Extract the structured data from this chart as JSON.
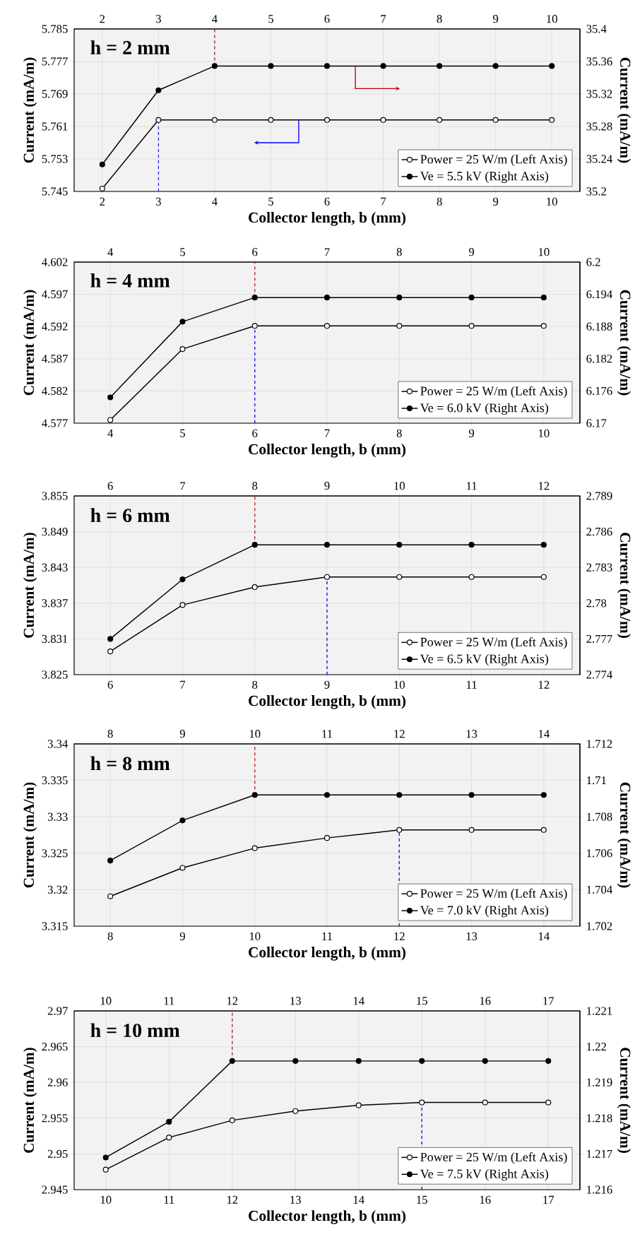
{
  "chart_data": [
    {
      "type": "line",
      "annotations": [
        "h = 2 mm"
      ],
      "xlabel": "Collector length, b (mm)",
      "ylabel": "Current (mA/m)",
      "y2label": "Current (mA/m)",
      "x": [
        2,
        3,
        4,
        5,
        6,
        7,
        8,
        9,
        10
      ],
      "series": [
        {
          "name": "Power = 25 W/m (Left Axis)",
          "color": "#000000",
          "values": [
            5.7457,
            5.7626,
            5.7626,
            5.7626,
            5.7626,
            5.7626,
            5.7626,
            5.7626,
            5.7626
          ]
        },
        {
          "name": "Ve = 5.5 kV (Right Axis)",
          "color": "#000000",
          "axis": "y2",
          "values": [
            35.2333,
            35.3246,
            35.3544,
            35.3544,
            35.3544,
            35.3544,
            35.3544,
            35.3544,
            35.3544
          ]
        }
      ],
      "xlim": [
        1.5,
        10.5
      ],
      "xticks": [
        2,
        3,
        4,
        5,
        6,
        7,
        8,
        9,
        10
      ],
      "x2lim": [
        1.5,
        10.5
      ],
      "x2ticks": [
        2,
        3,
        4,
        5,
        6,
        7,
        8,
        9,
        10
      ],
      "ylim": [
        5.745,
        5.785
      ],
      "yticks": [
        5.745,
        5.753,
        5.761,
        5.769,
        5.777,
        5.785
      ],
      "y2lim": [
        35.2,
        35.4
      ],
      "y2ticks": [
        35.2,
        35.24,
        35.28,
        35.32,
        35.36,
        35.4
      ],
      "ref_lines": [
        {
          "axis": "x",
          "value": 3,
          "color": "#1f1fff",
          "line_style": "dashed"
        },
        {
          "axis": "x",
          "value": 4,
          "color": "#c0282d",
          "line_style": "dashed"
        }
      ],
      "grid": true,
      "legend": "bottom right",
      "marker": "circle"
    },
    {
      "type": "line",
      "annotations": [
        "h = 4 mm"
      ],
      "xlabel": "Collector length, b (mm)",
      "ylabel": "Current (mA/m)",
      "y2label": "Current (mA/m)",
      "x": [
        4,
        5,
        6,
        7,
        8,
        9,
        10
      ],
      "series": [
        {
          "name": "Power = 25 W/m (Left Axis)",
          "color": "#000000",
          "values": [
            4.5775,
            4.5885,
            4.5921,
            4.5921,
            4.5921,
            4.5921,
            4.5921
          ]
        },
        {
          "name": "Ve = 6.0 kV (Right Axis)",
          "color": "#000000",
          "axis": "y2",
          "values": [
            6.1748,
            6.1889,
            6.1934,
            6.1934,
            6.1934,
            6.1934,
            6.1934
          ]
        }
      ],
      "xlim": [
        3.5,
        10.5
      ],
      "xticks": [
        4,
        5,
        6,
        7,
        8,
        9,
        10
      ],
      "x2lim": [
        3.5,
        10.5
      ],
      "x2ticks": [
        4,
        5,
        6,
        7,
        8,
        9,
        10
      ],
      "ylim": [
        4.577,
        4.602
      ],
      "yticks": [
        4.577,
        4.582,
        4.587,
        4.592,
        4.597,
        4.602
      ],
      "y2lim": [
        6.17,
        6.2
      ],
      "y2ticks": [
        6.17,
        6.176,
        6.182,
        6.188,
        6.194,
        6.2
      ],
      "ref_lines": [
        {
          "axis": "x",
          "value": 6,
          "color": "#1f1fff",
          "line_style": "dashed"
        },
        {
          "axis": "x",
          "value": 6,
          "color": "#c0282d",
          "line_style": "dashed"
        }
      ],
      "grid": true,
      "legend": "bottom right",
      "marker": "circle"
    },
    {
      "type": "line",
      "annotations": [
        "h = 6 mm"
      ],
      "xlabel": "Collector length, b (mm)",
      "ylabel": "Current (mA/m)",
      "y2label": "Current (mA/m)",
      "x": [
        6,
        7,
        8,
        9,
        10,
        11,
        12
      ],
      "series": [
        {
          "name": "Power = 25 W/m (Left Axis)",
          "color": "#000000",
          "values": [
            3.8289,
            3.8367,
            3.8397,
            3.8414,
            3.8414,
            3.8414,
            3.8414
          ]
        },
        {
          "name": "Ve = 6.5 kV (Right Axis)",
          "color": "#000000",
          "axis": "y2",
          "values": [
            2.777,
            2.782,
            2.7849,
            2.7849,
            2.7849,
            2.7849,
            2.7849
          ]
        }
      ],
      "xlim": [
        5.5,
        12.5
      ],
      "xticks": [
        6,
        7,
        8,
        9,
        10,
        11,
        12
      ],
      "x2lim": [
        5.5,
        12.5
      ],
      "x2ticks": [
        6,
        7,
        8,
        9,
        10,
        11,
        12
      ],
      "ylim": [
        3.825,
        3.855
      ],
      "yticks": [
        3.825,
        3.831,
        3.837,
        3.843,
        3.849,
        3.855
      ],
      "y2lim": [
        2.774,
        2.789
      ],
      "y2ticks": [
        2.774,
        2.777,
        2.78,
        2.783,
        2.786,
        2.789
      ],
      "ref_lines": [
        {
          "axis": "x",
          "value": 9,
          "color": "#1f1fff",
          "line_style": "dashed"
        },
        {
          "axis": "x",
          "value": 8,
          "color": "#c0282d",
          "line_style": "dashed"
        }
      ],
      "grid": true,
      "legend": "bottom right",
      "marker": "circle"
    },
    {
      "type": "line",
      "annotations": [
        "h = 8 mm"
      ],
      "xlabel": "Collector length, b (mm)",
      "ylabel": "Current (mA/m)",
      "y2label": "Current (mA/m)",
      "x": [
        8,
        9,
        10,
        11,
        12,
        13,
        14
      ],
      "series": [
        {
          "name": "Power = 25 W/m (Left Axis)",
          "color": "#000000",
          "values": [
            3.3191,
            3.323,
            3.3257,
            3.3271,
            3.3282,
            3.3282,
            3.3282
          ]
        },
        {
          "name": "Ve = 7.0 kV (Right Axis)",
          "color": "#000000",
          "axis": "y2",
          "values": [
            1.7056,
            1.7078,
            1.7092,
            1.7092,
            1.7092,
            1.7092,
            1.7092
          ]
        }
      ],
      "xlim": [
        7.5,
        14.5
      ],
      "xticks": [
        8,
        9,
        10,
        11,
        12,
        13,
        14
      ],
      "x2lim": [
        7.5,
        14.5
      ],
      "x2ticks": [
        8,
        9,
        10,
        11,
        12,
        13,
        14
      ],
      "ylim": [
        3.315,
        3.34
      ],
      "yticks": [
        3.315,
        3.32,
        3.325,
        3.33,
        3.335,
        3.34
      ],
      "y2lim": [
        1.702,
        1.712
      ],
      "y2ticks": [
        1.702,
        1.704,
        1.706,
        1.708,
        1.71,
        1.712
      ],
      "ref_lines": [
        {
          "axis": "x",
          "value": 12,
          "color": "#1f1fff",
          "line_style": "dashed"
        },
        {
          "axis": "x",
          "value": 10,
          "color": "#c0282d",
          "line_style": "dashed"
        }
      ],
      "grid": true,
      "legend": "bottom right",
      "marker": "circle"
    },
    {
      "type": "line",
      "annotations": [
        "h = 10 mm"
      ],
      "xlabel": "Collector length, b (mm)",
      "ylabel": "Current (mA/m)",
      "y2label": "Current (mA/m)",
      "x": [
        10,
        11,
        12,
        13,
        14,
        15,
        16,
        17
      ],
      "series": [
        {
          "name": "Power = 25 W/m (Left Axis)",
          "color": "#000000",
          "values": [
            2.9478,
            2.9523,
            2.9547,
            2.956,
            2.9568,
            2.9572,
            2.9572,
            2.9572
          ]
        },
        {
          "name": "Ve = 7.5 kV (Right Axis)",
          "color": "#000000",
          "axis": "y2",
          "values": [
            1.2169,
            1.2179,
            1.2196,
            1.2196,
            1.2196,
            1.2196,
            1.2196,
            1.2196
          ]
        }
      ],
      "xlim": [
        9.5,
        17.5
      ],
      "xticks": [
        10,
        11,
        12,
        13,
        14,
        15,
        16,
        17
      ],
      "x2lim": [
        9.5,
        17.5
      ],
      "x2ticks": [
        10,
        11,
        12,
        13,
        14,
        15,
        16,
        17
      ],
      "ylim": [
        2.945,
        2.97
      ],
      "yticks": [
        2.945,
        2.95,
        2.955,
        2.96,
        2.965,
        2.97
      ],
      "y2lim": [
        1.216,
        1.221
      ],
      "y2ticks": [
        1.216,
        1.217,
        1.218,
        1.219,
        1.22,
        1.221
      ],
      "ref_lines": [
        {
          "axis": "x",
          "value": 15,
          "color": "#1f1fff",
          "line_style": "dashed"
        },
        {
          "axis": "x",
          "value": 12,
          "color": "#c0282d",
          "line_style": "dashed"
        }
      ],
      "grid": true,
      "legend": "bottom right",
      "marker": "circle"
    }
  ]
}
